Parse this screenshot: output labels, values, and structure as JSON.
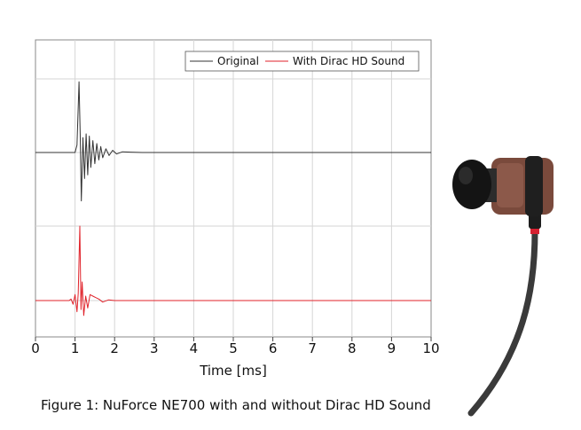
{
  "caption": "Figure 1: NuForce NE700 with and without Dirac HD Sound",
  "chart_data": {
    "type": "line",
    "title": "",
    "xlabel": "Time [ms]",
    "ylabel": "",
    "xlim": [
      0,
      10
    ],
    "xticks": [
      "0",
      "1",
      "2",
      "3",
      "4",
      "5",
      "6",
      "7",
      "8",
      "9",
      "10"
    ],
    "grid": true,
    "legend_position": "top-right",
    "series": [
      {
        "name": "Original",
        "color": "#333333",
        "offset_lane": "upper",
        "x": [
          0,
          1.0,
          1.05,
          1.1,
          1.13,
          1.16,
          1.2,
          1.24,
          1.28,
          1.32,
          1.36,
          1.4,
          1.45,
          1.5,
          1.55,
          1.6,
          1.65,
          1.7,
          1.78,
          1.86,
          1.95,
          2.05,
          2.2,
          2.4,
          2.7,
          3.0,
          4.0,
          10
        ],
        "y": [
          0,
          0,
          0.1,
          0.95,
          0.25,
          -0.65,
          0.2,
          -0.35,
          0.25,
          -0.3,
          0.22,
          -0.2,
          0.16,
          -0.15,
          0.12,
          -0.1,
          0.08,
          -0.07,
          0.05,
          -0.04,
          0.03,
          -0.02,
          0.01,
          0.005,
          0,
          0,
          0,
          0
        ]
      },
      {
        "name": "With Dirac HD Sound",
        "color": "#e0222a",
        "offset_lane": "lower",
        "x": [
          0,
          0.85,
          0.9,
          0.95,
          1.0,
          1.05,
          1.08,
          1.12,
          1.15,
          1.18,
          1.22,
          1.27,
          1.32,
          1.38,
          1.45,
          1.52,
          1.6,
          1.7,
          1.85,
          2.0,
          2.3,
          3.0,
          10
        ],
        "y": [
          0,
          0,
          0.02,
          -0.05,
          0.08,
          -0.15,
          0.1,
          1.0,
          -0.12,
          0.25,
          -0.2,
          0.06,
          -0.1,
          0.08,
          0.06,
          0.04,
          0.02,
          -0.02,
          0.01,
          0,
          0,
          0,
          0
        ]
      }
    ]
  }
}
